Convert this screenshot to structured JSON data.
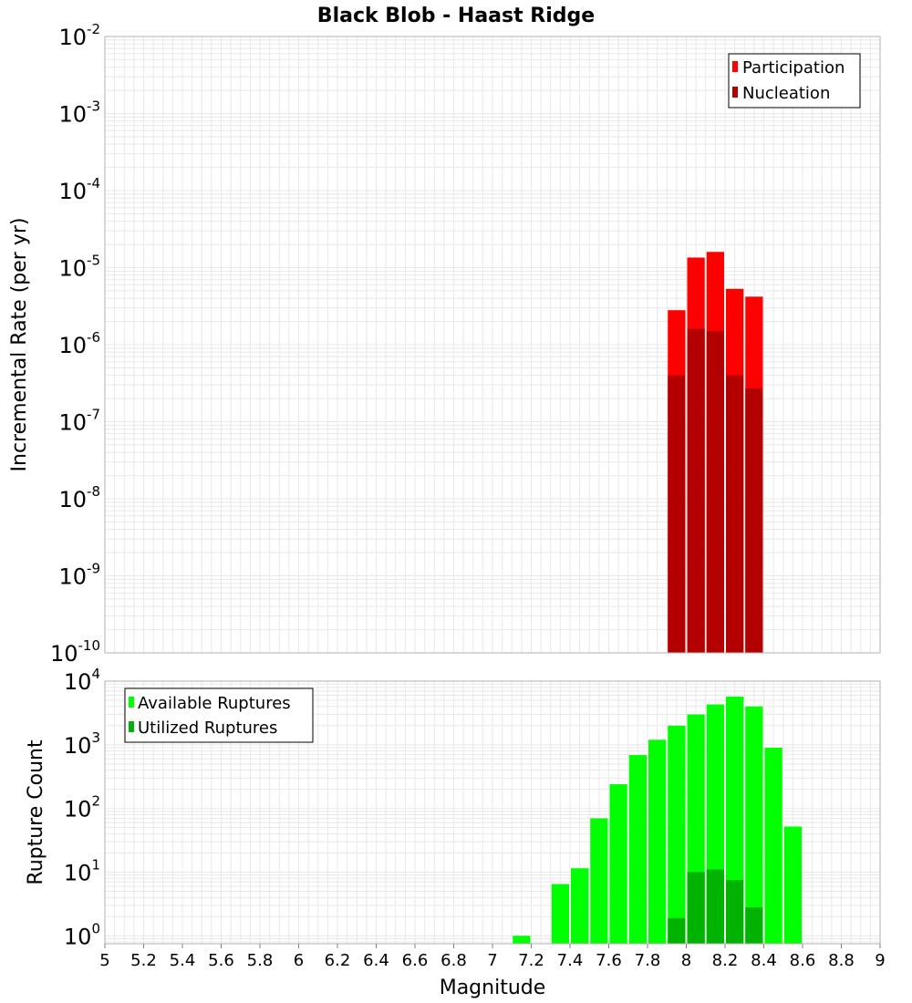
{
  "title": "Black Blob - Haast Ridge",
  "x_axis": {
    "label": "Magnitude",
    "range": [
      5,
      9
    ],
    "ticks": [
      "5",
      "5.2",
      "5.4",
      "5.6",
      "5.8",
      "6",
      "6.2",
      "6.4",
      "6.6",
      "6.8",
      "7",
      "7.2",
      "7.4",
      "7.6",
      "7.8",
      "8",
      "8.2",
      "8.4",
      "8.6",
      "8.8",
      "9"
    ]
  },
  "colors": {
    "participation": "#ff0000",
    "nucleation": "#b30000",
    "available": "#00ff00",
    "utilized": "#00b300",
    "grid": "#e8e8e8",
    "frame": "#b0b0b0"
  },
  "chart_data": [
    {
      "type": "bar",
      "title": "Black Blob - Haast Ridge",
      "ylabel": "Incremental Rate (per yr)",
      "xlabel": "",
      "y_scale": "log",
      "ylim": [
        1e-10,
        0.01
      ],
      "y_tick_exponents": [
        "-10",
        "-9",
        "-8",
        "-7",
        "-6",
        "-5",
        "-4",
        "-3",
        "-2"
      ],
      "y_tick_base": "10",
      "legend_position": "top-right",
      "grid": true,
      "bar_width": 0.1,
      "x": [
        7.95,
        8.05,
        8.15,
        8.25,
        8.35
      ],
      "series": [
        {
          "name": "Participation",
          "values": [
            2.8e-06,
            1.35e-05,
            1.6e-05,
            5.3e-06,
            4.2e-06
          ]
        },
        {
          "name": "Nucleation",
          "values": [
            4e-07,
            1.6e-06,
            1.5e-06,
            4e-07,
            2.7e-07
          ]
        }
      ]
    },
    {
      "type": "bar",
      "ylabel": "Rupture Count",
      "xlabel": "Magnitude",
      "y_scale": "log",
      "ylim": [
        0.75,
        10000
      ],
      "y_tick_exponents": [
        "0",
        "1",
        "2",
        "3",
        "4"
      ],
      "y_tick_base": "10",
      "legend_position": "top-left",
      "grid": true,
      "bar_width": 0.1,
      "x": [
        7.15,
        7.35,
        7.45,
        7.55,
        7.65,
        7.75,
        7.85,
        7.95,
        8.05,
        8.15,
        8.25,
        8.35,
        8.45,
        8.55
      ],
      "series": [
        {
          "name": "Available Ruptures",
          "values": [
            1,
            6.5,
            11.5,
            70,
            240,
            690,
            1200,
            2000,
            3000,
            4300,
            5700,
            4000,
            900,
            52
          ]
        },
        {
          "name": "Utilized Ruptures",
          "values": [
            0,
            0,
            0,
            0,
            0,
            0,
            0,
            1.9,
            10,
            11,
            7.5,
            2.8,
            0,
            0
          ]
        }
      ]
    }
  ]
}
